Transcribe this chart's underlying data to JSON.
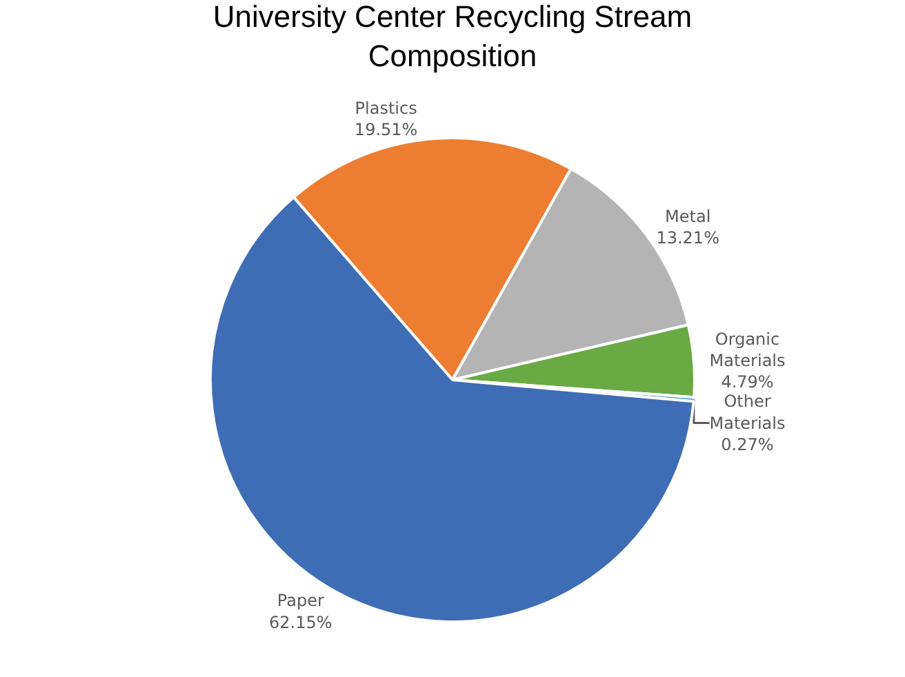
{
  "chart_data": {
    "type": "pie",
    "title": "University Center Recycling Stream Composition",
    "categories": [
      "Plastics",
      "Metal",
      "Organic Materials",
      "Other Materials",
      "Paper"
    ],
    "values": [
      19.51,
      13.21,
      4.79,
      0.27,
      62.15
    ],
    "colors": [
      "#ed7d31",
      "#b4b4b4",
      "#6aaa44",
      "#5b9bd5",
      "#3e6db5"
    ],
    "value_labels": [
      "19.51%",
      "13.21%",
      "4.79%",
      "0.27%",
      "62.15%"
    ],
    "legend": false
  }
}
